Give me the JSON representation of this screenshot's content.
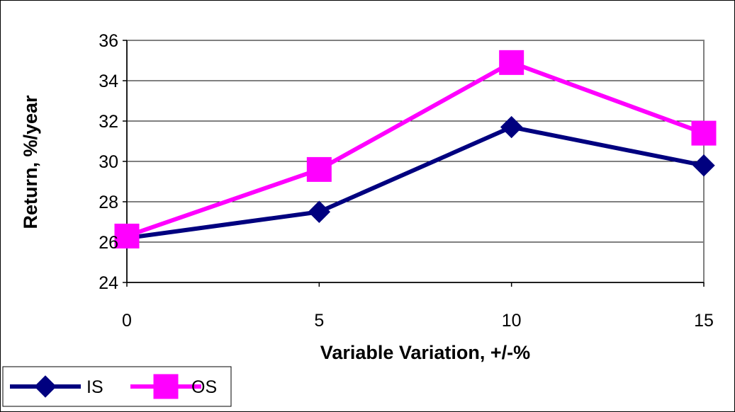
{
  "chart_data": {
    "type": "line",
    "title": "",
    "xlabel": "Variable Variation, +/-%",
    "ylabel": "Return, %/year",
    "x": [
      0,
      5,
      10,
      15
    ],
    "x_ticks": [
      "0",
      "5",
      "10",
      "15"
    ],
    "ylim": [
      24,
      36
    ],
    "y_ticks": [
      "24",
      "26",
      "28",
      "30",
      "32",
      "34",
      "36"
    ],
    "grid": true,
    "legend_position": "bottom-left",
    "series": [
      {
        "name": "IS",
        "values": [
          26.2,
          27.5,
          31.7,
          29.8
        ],
        "color": "#00007f",
        "marker": "diamond"
      },
      {
        "name": "OS",
        "values": [
          26.3,
          29.6,
          34.9,
          31.4
        ],
        "color": "#ff00ff",
        "marker": "square"
      }
    ],
    "plot_background": "#ffffff",
    "gridline_color": "#000000",
    "border_color": "#808080"
  }
}
